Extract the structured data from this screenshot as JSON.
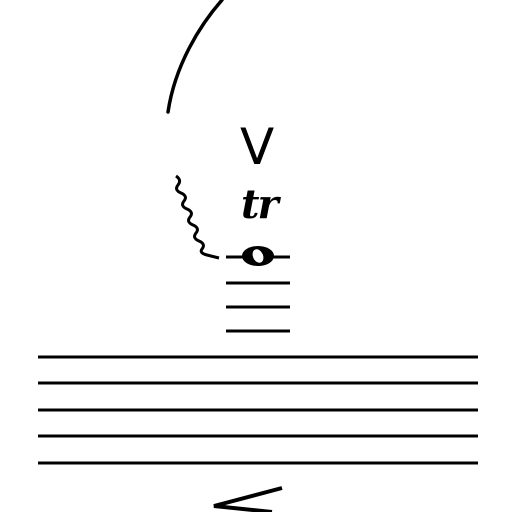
{
  "notation": {
    "accent_mark": "V",
    "trill_mark": "tr",
    "ink_color": "#000000",
    "paper_color": "#ffffff",
    "staff_line_count": 5,
    "ledger_line_count": 3,
    "symbols": [
      "slur-arc-icon",
      "wavy-arpeggio-icon",
      "whole-note-icon",
      "decrescendo-hairpin-icon"
    ]
  }
}
